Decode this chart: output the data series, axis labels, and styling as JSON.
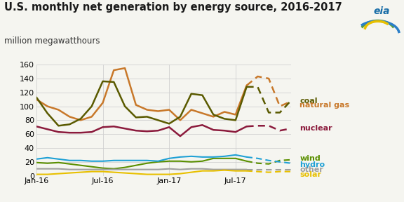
{
  "title": "U.S. monthly net generation by energy source, 2016-2017",
  "subtitle": "million megawatthours",
  "xlim": [
    0,
    23
  ],
  "ylim": [
    0,
    160
  ],
  "yticks": [
    0,
    20,
    40,
    60,
    80,
    100,
    120,
    140,
    160
  ],
  "xtick_labels": [
    "Jan-16",
    "Jul-16",
    "Jan-17",
    "Jul-17"
  ],
  "xtick_positions": [
    0,
    6,
    12,
    18
  ],
  "coal": [
    113,
    90,
    72,
    74,
    82,
    100,
    136,
    135,
    100,
    84,
    85,
    80,
    75,
    85,
    118,
    116,
    88,
    82,
    80,
    128,
    128,
    91,
    91,
    108
  ],
  "natural_gas": [
    110,
    100,
    95,
    85,
    80,
    85,
    105,
    152,
    155,
    102,
    95,
    93,
    95,
    80,
    95,
    90,
    85,
    92,
    88,
    130,
    143,
    140,
    100,
    107
  ],
  "nuclear": [
    71,
    67,
    63,
    62,
    62,
    63,
    70,
    71,
    68,
    65,
    64,
    65,
    70,
    57,
    70,
    73,
    66,
    65,
    63,
    71,
    72,
    72,
    65,
    68
  ],
  "wind": [
    19,
    18,
    19,
    17,
    15,
    13,
    11,
    10,
    12,
    15,
    18,
    20,
    21,
    21,
    20,
    21,
    25,
    25,
    25,
    21,
    18,
    17,
    22,
    23
  ],
  "hydro": [
    24,
    26,
    24,
    22,
    22,
    21,
    21,
    22,
    22,
    22,
    22,
    21,
    25,
    27,
    28,
    27,
    27,
    28,
    30,
    27,
    25,
    22,
    20,
    18
  ],
  "other": [
    10,
    10,
    10,
    9,
    9,
    9,
    9,
    9,
    9,
    9,
    9,
    9,
    10,
    9,
    10,
    10,
    9,
    9,
    9,
    9,
    9,
    9,
    9,
    9
  ],
  "solar": [
    2,
    2,
    3,
    4,
    5,
    6,
    6,
    5,
    4,
    3,
    2,
    2,
    2,
    3,
    5,
    7,
    7,
    8,
    7,
    7,
    6,
    5,
    6,
    6
  ],
  "dash_start": 19,
  "coal_color": "#5a5a00",
  "natural_gas_color": "#c8782a",
  "nuclear_color": "#8b1a3c",
  "wind_color": "#5a8f00",
  "hydro_color": "#1ea0d5",
  "other_color": "#a0a0a0",
  "solar_color": "#e8c000",
  "bg_color": "#f5f5f0",
  "grid_color": "#d0d0d0",
  "title_fontsize": 10.5,
  "subtitle_fontsize": 8.5,
  "tick_fontsize": 8,
  "label_fontsize": 8
}
